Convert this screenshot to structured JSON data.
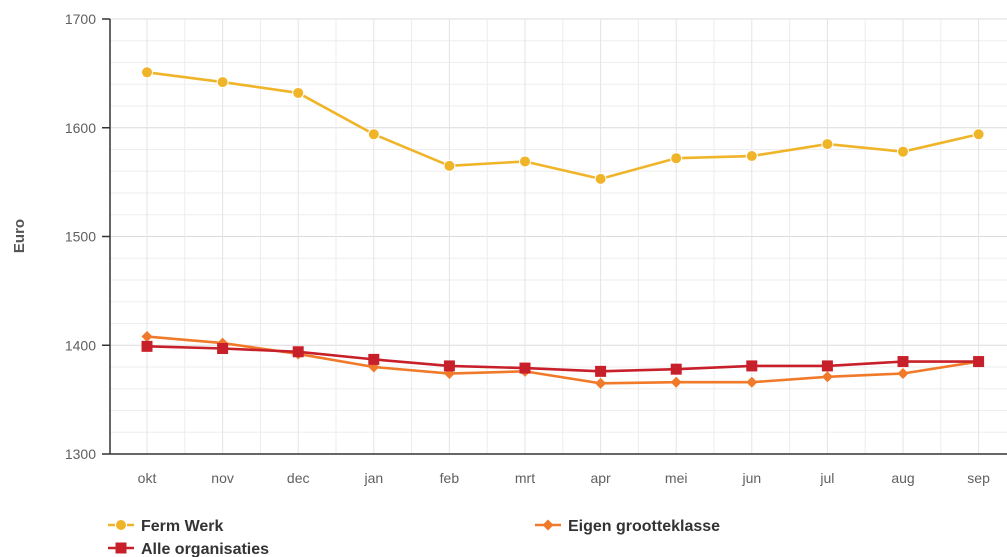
{
  "chart_data": {
    "type": "line",
    "title": "",
    "xlabel": "",
    "ylabel": "Euro",
    "ylim": [
      1300,
      1700
    ],
    "yticks": [
      1300,
      1400,
      1500,
      1600,
      1700
    ],
    "grid": true,
    "legend_position": "bottom",
    "categories": [
      "okt",
      "nov",
      "dec",
      "jan",
      "feb",
      "mrt",
      "apr",
      "mei",
      "jun",
      "jul",
      "aug",
      "sep"
    ],
    "series": [
      {
        "name": "Ferm Werk",
        "color": "#f0b429",
        "marker": "circle",
        "values": [
          1651,
          1642,
          1632,
          1594,
          1565,
          1569,
          1553,
          1572,
          1574,
          1585,
          1578,
          1594
        ]
      },
      {
        "name": "Eigen grootteklasse",
        "color": "#f07a2a",
        "marker": "diamond",
        "values": [
          1408,
          1402,
          1392,
          1380,
          1374,
          1376,
          1365,
          1366,
          1366,
          1371,
          1374,
          1385
        ]
      },
      {
        "name": "Alle organisaties",
        "color": "#c8202a",
        "marker": "square",
        "values": [
          1399,
          1397,
          1394,
          1387,
          1381,
          1379,
          1376,
          1378,
          1381,
          1381,
          1385,
          1385
        ]
      }
    ]
  }
}
